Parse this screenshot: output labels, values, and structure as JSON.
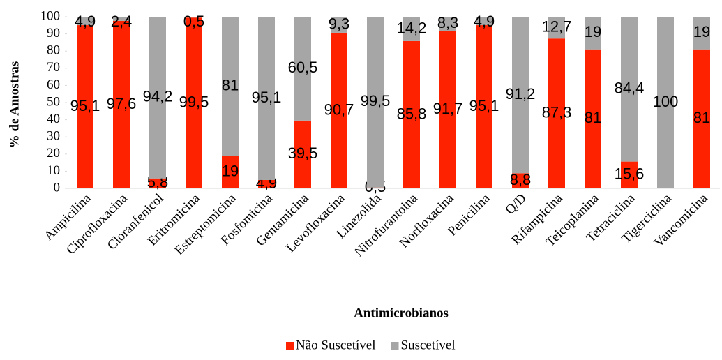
{
  "chart_data": {
    "type": "stacked_bar",
    "x_label": "Antimicrobianos",
    "y_label": "% de Amostras",
    "categories": [
      "Ampicilina",
      "Ciprofloxacina",
      "Cloranfenicol",
      "Eritromicina",
      "Estreptomicina",
      "Fosfomicina",
      "Gentamicina",
      "Levofloxacina",
      "Linezolida",
      "Nitrofurantoina",
      "Norfloxacina",
      "Penicilina",
      "Q/D",
      "Rifampicina",
      "Teicoplanina",
      "Tetraciclina",
      "Tigerciclina",
      "Vancomicina"
    ],
    "series": [
      {
        "name": "Não Suscetível",
        "color": "#ff2200",
        "values": [
          95.1,
          97.6,
          5.8,
          99.5,
          19,
          4.9,
          39.5,
          90.7,
          0.5,
          85.8,
          91.7,
          95.1,
          8.8,
          87.3,
          81,
          15.6,
          0,
          81
        ],
        "value_labels": [
          "95,1",
          "97,6",
          "5,8",
          "99,5",
          "19",
          "4,9",
          "39,5",
          "90,7",
          "0,5",
          "85,8",
          "91,7",
          "95,1",
          "8,8",
          "87,3",
          "81",
          "15,6",
          null,
          "81"
        ]
      },
      {
        "name": "Suscetível",
        "color": "#a6a6a6",
        "values": [
          4.9,
          2.4,
          94.2,
          0.5,
          81,
          95.1,
          60.5,
          9.3,
          99.5,
          14.2,
          8.3,
          4.9,
          91.2,
          12.7,
          19,
          84.4,
          100,
          19
        ],
        "value_labels": [
          "4,9",
          "2,4",
          "94,2",
          "0,5",
          "81",
          "95,1",
          "60,5",
          "9,3",
          "99,5",
          "14,2",
          "8,3",
          "4,9",
          "91,2",
          "12,7",
          "19",
          "84,4",
          "100",
          "19"
        ]
      }
    ],
    "ylim": [
      0,
      100
    ],
    "yticks": [
      0,
      10,
      20,
      30,
      40,
      50,
      60,
      70,
      80,
      90,
      100
    ],
    "legend": "bottom",
    "grid": false
  }
}
